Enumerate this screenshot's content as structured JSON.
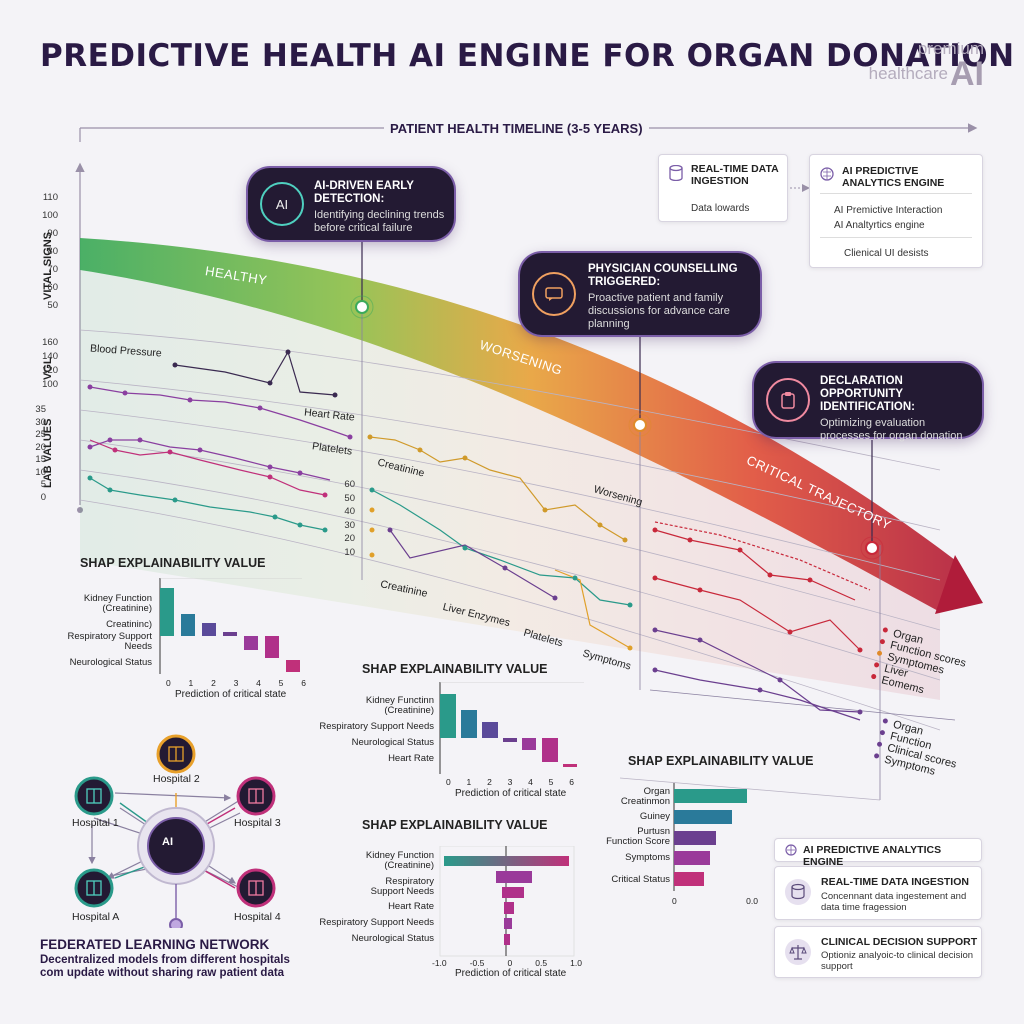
{
  "header": {
    "title": "PREDICTIVE HEALTH AI ENGINE FOR ORGAN DONATION",
    "brand_line1": "premium",
    "brand_line2": "healthcare",
    "brand_ai": "AI"
  },
  "timeline": {
    "label": "PATIENT HEALTH TIMELINE (3-5 YEARS)"
  },
  "y_axes": {
    "vital_title": "VITAL SIGNS",
    "vital_ticks": [
      "110",
      "100",
      "90",
      "80",
      "70",
      "60",
      "50"
    ],
    "vgl_title": "VGL",
    "vgl_ticks": [
      "160",
      "140",
      "120",
      "100"
    ],
    "lab_title": "LAB VALUES",
    "lab_ticks": [
      "35",
      "30",
      "25",
      "20",
      "15",
      "10",
      "5",
      "0"
    ],
    "mid_ticks": [
      "60",
      "50",
      "40",
      "30",
      "20",
      "10"
    ]
  },
  "trajectory": {
    "healthy": "HEALTHY",
    "worsening": "WORSENING",
    "critical": "CRITICAL TRAJECTORY"
  },
  "callouts": {
    "early": {
      "title": "AI-DRIVEN EARLY DETECTION:",
      "desc": "Identifying declining trends before critical failure",
      "icon": "AI"
    },
    "physician": {
      "title": "PHYSICIAN COUNSELLING TRIGGERED:",
      "desc": "Proactive patient and family discussions for advance care planning"
    },
    "declaration": {
      "title": "DECLARATION OPPORTUNITY IDENTIFICATION:",
      "desc": "Optimizing evaluation processes for organ donation"
    }
  },
  "top_cards": {
    "ingestion": {
      "title": "REAL-TIME DATA INGESTION",
      "body": "Data lowards"
    },
    "engine": {
      "title": "AI PREDICTIVE ANALYTICS ENGINE",
      "item1": "AI Premictive Interaction",
      "item2": "AI Analtyrtics engine",
      "item3": "Clienical UI desists"
    }
  },
  "series_labels": {
    "blood_pressure": "Blood Pressure",
    "heart_rate": "Heart Rate",
    "platelets": "Platelets",
    "creatinine": "Creatinine",
    "worsening_small": "Worsening",
    "creatinine2": "Creatinine",
    "liver_enzymes": "Liver Enzymes",
    "platelets2": "Platelets",
    "symptoms": "Symptoms"
  },
  "right_legend": {
    "group1": [
      "Organ",
      "Function scores",
      "Symptomes",
      "Liver",
      "Eomems"
    ],
    "group2": [
      "Organ",
      "Function",
      "Clinical scores",
      "Symptoms"
    ]
  },
  "colors": {
    "purple": "#6b3f8f",
    "teal": "#2a9a8a",
    "pink": "#c0307a",
    "orange": "#e08a2a",
    "red": "#c8283a",
    "green": "#4caf5a",
    "dark": "#231a33"
  },
  "shap1": {
    "title": "SHAP EXPLAINABILITY VALUE",
    "labels": [
      "Kidney Function\n(Creatinine)",
      "Creatininc)",
      "Respiratory Support\nNeeds",
      "Neurological Status"
    ],
    "xlabel": "Prediction of critical state",
    "xticks": [
      "0",
      "1",
      "2",
      "3",
      "4",
      "5",
      "6"
    ]
  },
  "shap2": {
    "title": "SHAP EXPLAINABILITY VALUE",
    "labels": [
      "Kidney Functinn\n(Creatinine)",
      "Respiratory Support Needs",
      "Neurological Status",
      "Heart Rate"
    ],
    "xlabel": "Prediction of critical state",
    "xticks": [
      "0",
      "1",
      "2",
      "3",
      "4",
      "5",
      "6"
    ]
  },
  "shap3": {
    "title": "SHAP EXPLAINABILITY VALUE",
    "labels": [
      "Kidney Function\n(Creatinine)",
      "Respiratory\nSupport Needs",
      "Heart Rate",
      "Respiratory Support Needs",
      "Neurological Status"
    ],
    "xlabel": "Prediction of critical state",
    "xticks": [
      "-1.0",
      "-0.5",
      "0",
      "0.5",
      "1.0"
    ]
  },
  "shap4": {
    "title": "SHAP EXPLAINABILITY VALUE",
    "labels": [
      "Organ\nCreatinmon",
      "Guiney",
      "Purtusn\nFunction Score",
      "Symptoms",
      "Critical Status"
    ],
    "xticks": [
      "0",
      "0.0"
    ]
  },
  "federated": {
    "title": "FEDERATED LEARNING NETWORK",
    "desc1": "Decentralized models from different hospitals",
    "desc2": "com update without sharing raw patient data",
    "hospitals": [
      "Hospital 2",
      "Hospital 1",
      "Hospital 3",
      "Hospital A",
      "Hospital 4"
    ],
    "center_icon": "AI"
  },
  "bottom_cards": {
    "engine": {
      "title": "AI PREDICTIVE ANALYTICS ENGINE"
    },
    "ingestion": {
      "title": "REAL-TIME DATA INGESTION",
      "desc": "Concennant data ingestement and data time fragession"
    },
    "cds": {
      "title": "CLINICAL DECISION SUPPORT",
      "desc": "Optioniz analyoic-to clinical decision support"
    }
  }
}
